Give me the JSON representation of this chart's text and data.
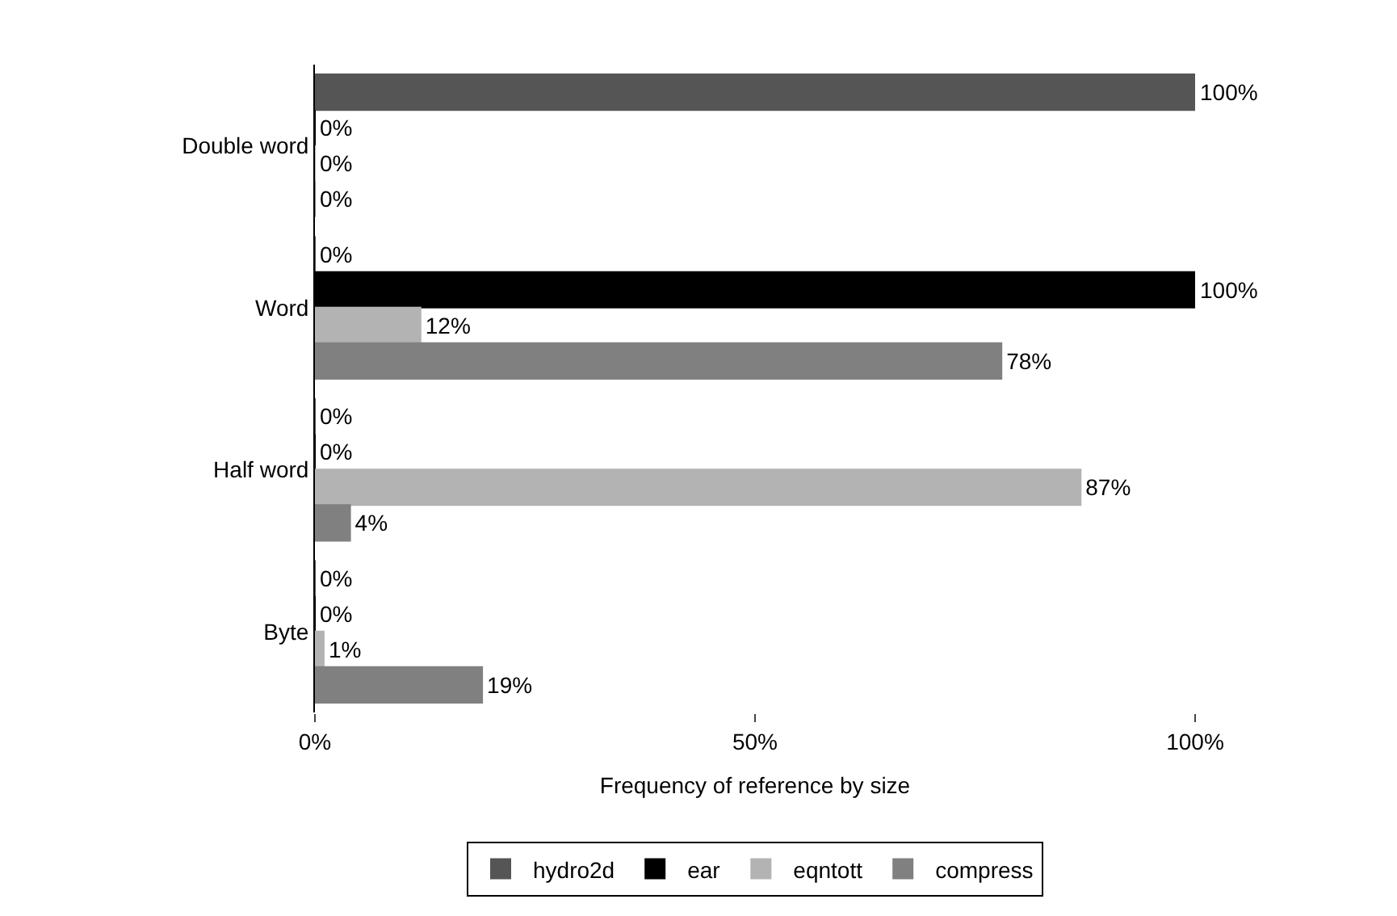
{
  "chart_data": {
    "type": "bar",
    "orientation": "horizontal",
    "xlabel": "Frequency of reference by size",
    "categories": [
      "Double word",
      "Word",
      "Half word",
      "Byte"
    ],
    "series": [
      {
        "name": "hydro2d",
        "color": "#555555",
        "values": [
          100,
          0,
          0,
          0
        ],
        "value_labels": [
          "100%",
          "0%",
          "0%",
          "0%"
        ]
      },
      {
        "name": "ear",
        "color": "#000000",
        "values": [
          0,
          100,
          0,
          0
        ],
        "value_labels": [
          "0%",
          "100%",
          "0%",
          "0%"
        ]
      },
      {
        "name": "eqntott",
        "color": "#b3b3b3",
        "values": [
          0,
          12,
          87,
          1
        ],
        "value_labels": [
          "0%",
          "12%",
          "87%",
          "1%"
        ]
      },
      {
        "name": "compress",
        "color": "#808080",
        "values": [
          0,
          78,
          4,
          19
        ],
        "value_labels": [
          "0%",
          "78%",
          "4%",
          "19%"
        ]
      }
    ],
    "xlim": [
      0,
      100
    ],
    "xticks": [
      {
        "value": 0,
        "label": "0%"
      },
      {
        "value": 50,
        "label": "50%"
      },
      {
        "value": 100,
        "label": "100%"
      }
    ],
    "legend": "bottom"
  }
}
